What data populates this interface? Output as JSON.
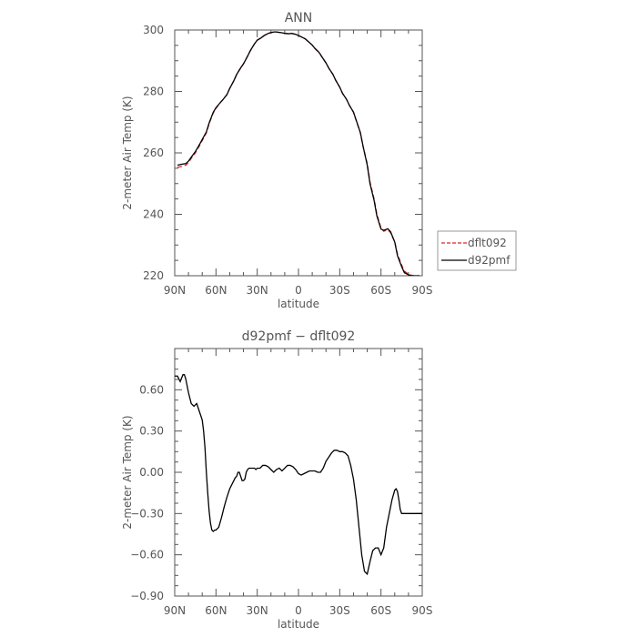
{
  "chart_data": [
    {
      "type": "line",
      "title": "ANN",
      "xlabel": "latitude",
      "ylabel": "2-meter Air Temp (K)",
      "xlim": [
        90,
        -90
      ],
      "ylim": [
        220,
        300
      ],
      "xticks": [
        90,
        60,
        30,
        0,
        -30,
        -60,
        -90
      ],
      "xtick_labels": [
        "90N",
        "60N",
        "30N",
        "0",
        "30S",
        "60S",
        "90S"
      ],
      "yticks": [
        220,
        240,
        260,
        280,
        300
      ],
      "ytick_labels": [
        "220",
        "240",
        "260",
        "280",
        "300"
      ],
      "grid": false,
      "legend_position": "right",
      "series": [
        {
          "name": "dflt092",
          "color": "#d62728",
          "dash": "dashed",
          "x": [
            88,
            85,
            82,
            80,
            78,
            75,
            72,
            70,
            67,
            65,
            62,
            60,
            57,
            55,
            52,
            50,
            47,
            45,
            42,
            40,
            37,
            35,
            32,
            30,
            27,
            25,
            22,
            20,
            17,
            15,
            12,
            10,
            7,
            5,
            2,
            0,
            -2,
            -5,
            -7,
            -10,
            -12,
            -15,
            -17,
            -20,
            -22,
            -25,
            -27,
            -30,
            -32,
            -35,
            -37,
            -40,
            -42,
            -45,
            -47,
            -50,
            -52,
            -55,
            -57,
            -60,
            -62,
            -65,
            -67,
            -70,
            -72,
            -75,
            -77,
            -80,
            -82,
            -84,
            -86,
            -88
          ],
          "y": [
            255.3,
            255.6,
            256.0,
            256.8,
            258.2,
            260.0,
            262.3,
            264.0,
            266.5,
            269.5,
            273.0,
            274.5,
            276.3,
            277.3,
            279.0,
            281.0,
            283.5,
            285.5,
            287.7,
            289.0,
            291.5,
            293.3,
            295.5,
            296.7,
            297.5,
            298.2,
            298.9,
            299.2,
            299.4,
            299.3,
            299.1,
            298.9,
            298.8,
            298.9,
            298.6,
            298.2,
            297.8,
            297.1,
            296.3,
            295.1,
            294.0,
            292.7,
            291.3,
            289.3,
            287.6,
            285.6,
            283.7,
            281.4,
            279.4,
            277.4,
            275.5,
            273.2,
            270.5,
            266.5,
            262.0,
            256.5,
            250.5,
            245.0,
            240.0,
            235.5,
            234.5,
            235.0,
            234.0,
            231.0,
            227.0,
            223.5,
            221.5,
            220.5,
            220.2,
            220.0,
            220.0,
            220.0
          ]
        },
        {
          "name": "d92pmf",
          "color": "#000000",
          "dash": "solid",
          "x": [
            88,
            85,
            82,
            80,
            78,
            75,
            72,
            70,
            67,
            65,
            62,
            60,
            57,
            55,
            52,
            50,
            47,
            45,
            42,
            40,
            37,
            35,
            32,
            30,
            27,
            25,
            22,
            20,
            17,
            15,
            12,
            10,
            7,
            5,
            2,
            0,
            -2,
            -5,
            -7,
            -10,
            -12,
            -15,
            -17,
            -20,
            -22,
            -25,
            -27,
            -30,
            -32,
            -35,
            -37,
            -40,
            -42,
            -45,
            -47,
            -50,
            -52,
            -55,
            -57,
            -60,
            -62,
            -65,
            -67,
            -70,
            -72,
            -75,
            -77,
            -80,
            -82,
            -84,
            -86,
            -88
          ],
          "y": [
            256.0,
            256.3,
            256.5,
            257.3,
            258.6,
            260.4,
            262.7,
            264.4,
            266.8,
            269.7,
            273.2,
            274.7,
            276.3,
            277.3,
            279.0,
            281.0,
            283.5,
            285.5,
            287.7,
            289.0,
            291.5,
            293.3,
            295.5,
            296.7,
            297.5,
            298.2,
            298.9,
            299.2,
            299.4,
            299.3,
            299.1,
            298.9,
            298.8,
            298.9,
            298.6,
            298.2,
            297.8,
            297.1,
            296.3,
            295.1,
            294.0,
            292.7,
            291.3,
            289.3,
            287.6,
            285.6,
            283.7,
            281.4,
            279.4,
            277.4,
            275.5,
            273.3,
            270.6,
            266.6,
            262.1,
            256.0,
            250.0,
            244.5,
            239.5,
            235.2,
            234.8,
            235.3,
            234.3,
            231.0,
            226.5,
            223.0,
            221.0,
            220.3,
            220.0,
            220.0,
            220.0,
            220.0
          ]
        }
      ]
    },
    {
      "type": "line",
      "title": "d92pmf − dflt092",
      "xlabel": "latitude",
      "ylabel": "2-meter Air Temp (K)",
      "xlim": [
        90,
        -90
      ],
      "ylim": [
        -0.9,
        0.9
      ],
      "xticks": [
        90,
        60,
        30,
        0,
        -30,
        -60,
        -90
      ],
      "xtick_labels": [
        "90N",
        "60N",
        "30N",
        "0",
        "30S",
        "60S",
        "90S"
      ],
      "yticks": [
        -0.9,
        -0.6,
        -0.3,
        0.0,
        0.3,
        0.6
      ],
      "ytick_labels": [
        "−0.90",
        "−0.60",
        "−0.30",
        "0.00",
        "0.30",
        "0.60"
      ],
      "grid": false,
      "series": [
        {
          "color": "#000000",
          "dash": "solid",
          "x": [
            90,
            88,
            86,
            84,
            83,
            82,
            80,
            78,
            76,
            74,
            72,
            70,
            69,
            68,
            67,
            66,
            65,
            64,
            63,
            62,
            61,
            60,
            58,
            56,
            54,
            52,
            50,
            48,
            46,
            45,
            44,
            43,
            42,
            41,
            40,
            39,
            38,
            37,
            36,
            35,
            34,
            33,
            32,
            31,
            30,
            28,
            26,
            24,
            22,
            20,
            18,
            16,
            14,
            12,
            10,
            8,
            6,
            4,
            2,
            0,
            -2,
            -4,
            -6,
            -8,
            -10,
            -12,
            -14,
            -16,
            -18,
            -20,
            -22,
            -24,
            -26,
            -28,
            -30,
            -32,
            -34,
            -36,
            -38,
            -40,
            -42,
            -44,
            -46,
            -48,
            -50,
            -52,
            -54,
            -56,
            -58,
            -60,
            -62,
            -64,
            -66,
            -68,
            -70,
            -71,
            -72,
            -73,
            -74,
            -75,
            -76,
            -77,
            -78,
            -79,
            -80,
            -81,
            -82,
            -83,
            -84,
            -85,
            -86,
            -87,
            -88,
            -89,
            -90
          ],
          "y": [
            0.7,
            0.7,
            0.66,
            0.71,
            0.71,
            0.68,
            0.58,
            0.5,
            0.48,
            0.5,
            0.44,
            0.38,
            0.3,
            0.18,
            0.0,
            -0.15,
            -0.28,
            -0.37,
            -0.42,
            -0.43,
            -0.42,
            -0.42,
            -0.4,
            -0.33,
            -0.25,
            -0.18,
            -0.12,
            -0.08,
            -0.04,
            -0.03,
            0.0,
            0.0,
            -0.03,
            -0.06,
            -0.06,
            -0.05,
            0.0,
            0.02,
            0.03,
            0.03,
            0.03,
            0.03,
            0.03,
            0.02,
            0.03,
            0.03,
            0.05,
            0.05,
            0.04,
            0.02,
            0.0,
            0.02,
            0.03,
            0.01,
            0.03,
            0.05,
            0.05,
            0.04,
            0.02,
            -0.01,
            -0.02,
            -0.01,
            0.0,
            0.01,
            0.01,
            0.01,
            0.0,
            0.0,
            0.03,
            0.08,
            0.11,
            0.14,
            0.16,
            0.16,
            0.15,
            0.15,
            0.14,
            0.12,
            0.05,
            -0.05,
            -0.2,
            -0.4,
            -0.6,
            -0.72,
            -0.74,
            -0.65,
            -0.57,
            -0.55,
            -0.55,
            -0.6,
            -0.55,
            -0.4,
            -0.3,
            -0.2,
            -0.13,
            -0.12,
            -0.14,
            -0.2,
            -0.27,
            -0.3,
            -0.3,
            -0.3,
            -0.3,
            -0.3,
            -0.3,
            -0.3,
            -0.3,
            -0.3,
            -0.3,
            -0.3,
            -0.3,
            -0.3,
            -0.3,
            -0.3,
            -0.3
          ]
        }
      ]
    }
  ]
}
